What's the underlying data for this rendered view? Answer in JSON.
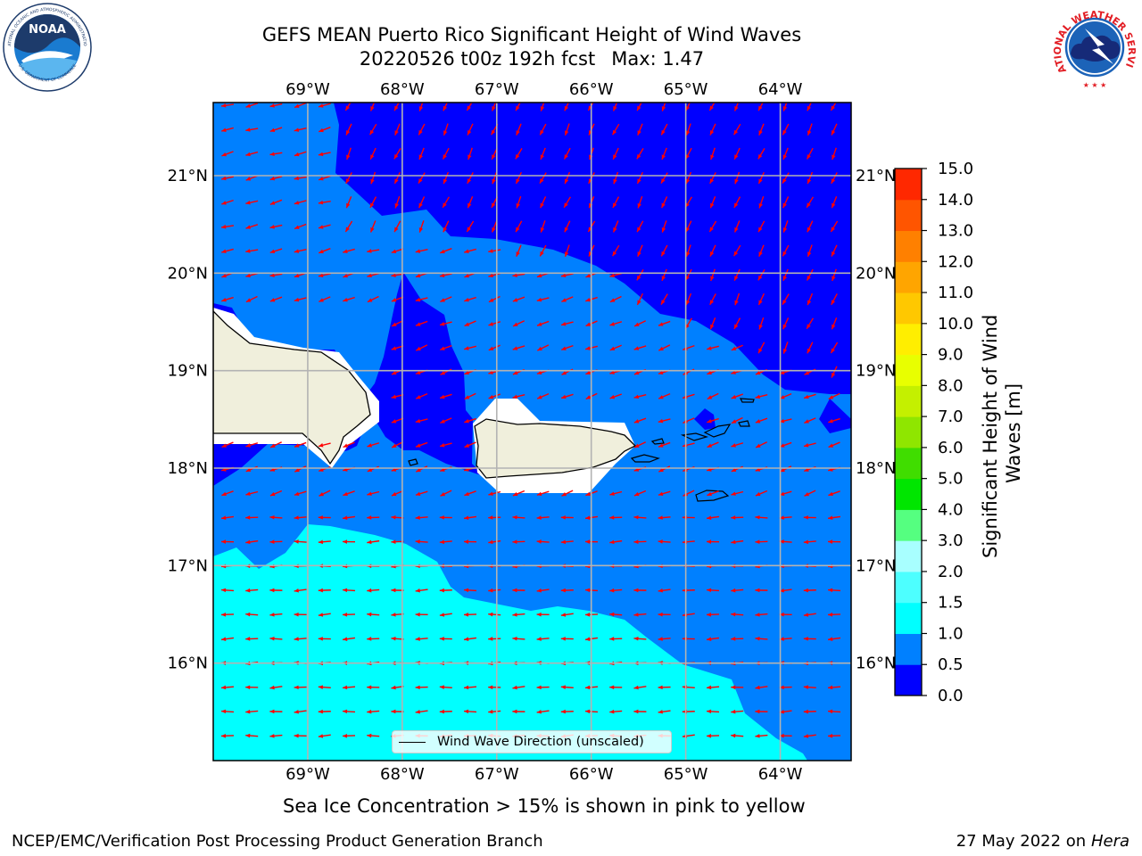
{
  "title": {
    "line1": "GEFS MEAN Puerto Rico Significant Height of Wind Waves",
    "line2_date": "20220526 t00z 192h fcst",
    "line2_max": "Max: 1.47"
  },
  "logos": {
    "noaa": {
      "center_text": "NOAA",
      "ring_text": "NATIONAL OCEANIC AND ATMOSPHERIC ADMINISTRATION",
      "ring_text_bottom": "U.S. DEPARTMENT OF COMMERCE",
      "colors": {
        "navy": "#1d3b6b",
        "blue": "#1a7bd0",
        "light": "#5bb6ef"
      }
    },
    "nws": {
      "ring_text": "NATIONAL WEATHER SERVICE",
      "colors": {
        "red": "#e21d24",
        "blue": "#1c63b8",
        "navy": "#162a78"
      }
    }
  },
  "map": {
    "lon_range": [
      -70.0,
      -63.25
    ],
    "lat_range": [
      15.0,
      21.75
    ],
    "lon_ticks": [
      "69°W",
      "68°W",
      "67°W",
      "66°W",
      "65°W",
      "64°W"
    ],
    "lon_tick_values": [
      -69,
      -68,
      -67,
      -66,
      -65,
      -64
    ],
    "lat_ticks": [
      "21°N",
      "20°N",
      "19°N",
      "18°N",
      "17°N",
      "16°N"
    ],
    "lat_tick_values": [
      21,
      20,
      19,
      18,
      17,
      16
    ],
    "grid": true,
    "colors": {
      "band_0_0_5": "#0000ff",
      "band_0_5_1_0": "#0080ff",
      "band_1_0_1_5": "#00ffff",
      "land": "#f0efdc",
      "arrow": "#ff0000",
      "grid": "#b3b3b3"
    }
  },
  "colorbar": {
    "label": "Significant Height of Wind Waves [m]",
    "ticks": [
      "0.0",
      "0.5",
      "1.0",
      "1.5",
      "2.0",
      "3.0",
      "4.0",
      "5.0",
      "6.0",
      "7.0",
      "8.0",
      "9.0",
      "10.0",
      "11.0",
      "12.0",
      "13.0",
      "14.0",
      "15.0"
    ],
    "colors": [
      "#0000ff",
      "#0080ff",
      "#00ffff",
      "#4dffff",
      "#a8ffff",
      "#55ff80",
      "#00e600",
      "#40dd00",
      "#8fe600",
      "#c4f000",
      "#e8ff00",
      "#ffee00",
      "#ffc800",
      "#ffa500",
      "#ff8000",
      "#ff5500",
      "#ff2800"
    ]
  },
  "legend": {
    "label": "Wind Wave Direction (unscaled)"
  },
  "caption": "Sea Ice Concentration > 15% is shown in pink to yellow",
  "footer": {
    "left": "NCEP/EMC/Verification Post Processing Product Generation Branch",
    "right_date": "27 May 2022 on",
    "right_host": "Hera"
  }
}
